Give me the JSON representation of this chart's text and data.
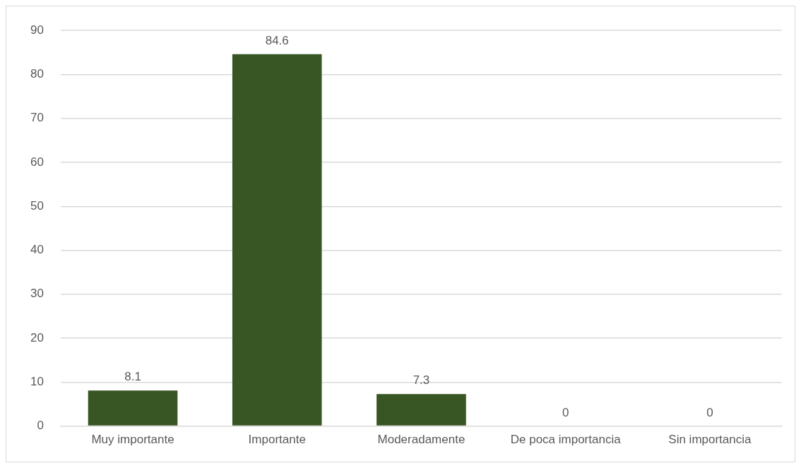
{
  "chart_data": {
    "type": "bar",
    "categories": [
      "Muy importante",
      "Importante",
      "Moderadamente",
      "De poca importancia",
      "Sin importancia"
    ],
    "values": [
      8.1,
      84.6,
      7.3,
      0,
      0
    ],
    "color": "#375623",
    "ylim": [
      0,
      90
    ],
    "yticks": [
      0,
      10,
      20,
      30,
      40,
      50,
      60,
      70,
      80,
      90
    ],
    "grid": "y",
    "data_labels": true,
    "legend": false
  }
}
